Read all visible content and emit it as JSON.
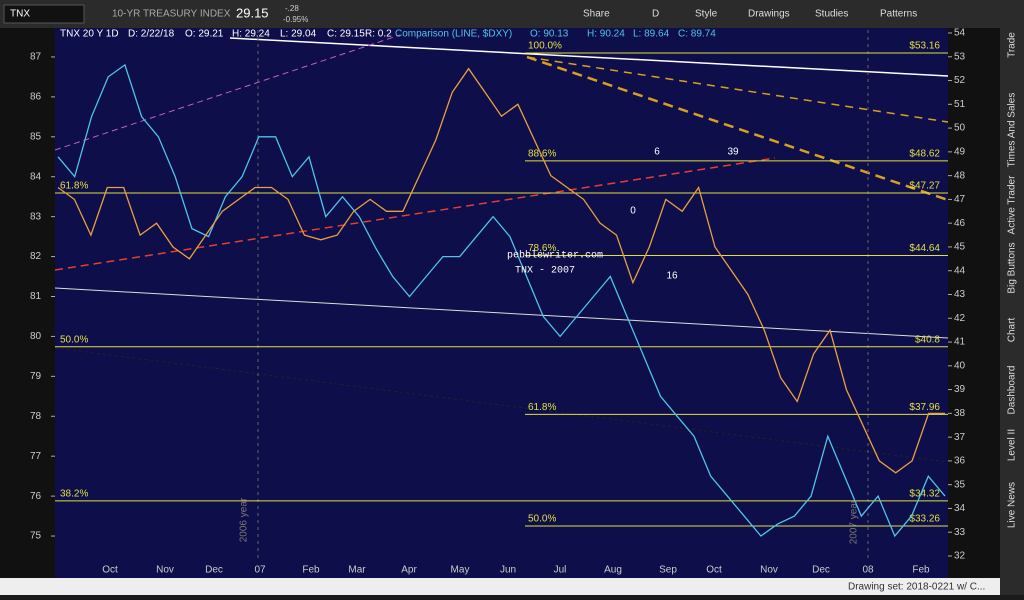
{
  "toolbar": {
    "symbol": "TNX",
    "description": "10-YR TREASURY INDEX",
    "last": "29.15",
    "change": "-.28",
    "change_pct": "-0.95%",
    "buttons": [
      "Share",
      "D",
      "Style",
      "Drawings",
      "Studies",
      "Patterns"
    ]
  },
  "header": {
    "study": "TNX 20 Y 1D",
    "date": "D: 2/22/18",
    "open": "O: 29.21",
    "high": "H: 29.24",
    "low": "L: 29.04",
    "close": "C: 29.15",
    "range": "R: 0.2",
    "comparison": "Comparison (LINE, $DXY)",
    "c_open": "O: 90.13",
    "c_high": "H: 90.24",
    "c_low": "L: 89.64",
    "c_close": "C: 89.74"
  },
  "chart": {
    "type": "line",
    "x_labels": [
      "Oct",
      "Nov",
      "Dec",
      "07",
      "Feb",
      "Mar",
      "Apr",
      "May",
      "Jun",
      "Jul",
      "Aug",
      "Sep",
      "Oct",
      "Nov",
      "Dec",
      "08",
      "Feb"
    ],
    "ylim": [
      32,
      54
    ],
    "yticks": [
      32,
      33,
      34,
      35,
      36,
      37,
      38,
      39,
      40,
      41,
      42,
      43,
      44,
      45,
      46,
      47,
      48,
      49,
      50,
      51,
      52,
      53,
      54
    ],
    "y2lim": [
      74.5,
      87.6
    ],
    "y2ticks": [
      75,
      76,
      77,
      78,
      79,
      80,
      81,
      82,
      83,
      84,
      85,
      86,
      87
    ],
    "price": {
      "name": "TNX",
      "color": "#e8a040",
      "values": [
        47.5,
        47,
        45.5,
        47.5,
        47.5,
        45.5,
        46,
        45,
        44.5,
        45.5,
        46.5,
        47,
        47.5,
        47.5,
        47,
        45.5,
        45.3,
        45.5,
        46.5,
        47,
        46.5,
        46.5,
        48,
        49.5,
        51.5,
        52.5,
        51.5,
        50.5,
        51,
        49.5,
        48,
        47.5,
        47,
        46,
        45.5,
        43.5,
        45,
        47,
        46.5,
        47.5,
        45,
        44,
        43,
        41.5,
        39.5,
        38.5,
        40.5,
        41.5,
        39,
        37.5,
        36,
        35.5,
        36,
        38,
        38
      ]
    },
    "comparison": {
      "name": "$DXY",
      "color": "#4fc3e8",
      "axis": "y2",
      "values": [
        84.5,
        84,
        85.5,
        86.5,
        86.8,
        85.5,
        85,
        84,
        82.7,
        82.5,
        83.5,
        84,
        85,
        85,
        84,
        84.5,
        83,
        83.5,
        83,
        82.2,
        81.5,
        81,
        81.5,
        82,
        82,
        82.5,
        83,
        82.5,
        81.5,
        80.5,
        80,
        80.5,
        81,
        81.5,
        80.5,
        79.5,
        78.5,
        78,
        77.5,
        76.5,
        76,
        75.5,
        75,
        75.3,
        75.5,
        76,
        77.5,
        76.5,
        75.5,
        76,
        75,
        75.5,
        76.5,
        76
      ]
    },
    "fib_full": [
      {
        "label": "61.8%",
        "price": {
          "value": 47.27,
          "label": "$47.27"
        }
      },
      {
        "label": "50.0%",
        "price": {
          "value": 40.8,
          "label": "$40.8"
        }
      },
      {
        "label": "38.2%",
        "price": {
          "value": 34.32,
          "label": "$34.32"
        }
      }
    ],
    "fib_mid": [
      {
        "label": "100.0%",
        "price": {
          "value": 53.16,
          "label": "$53.16"
        }
      },
      {
        "label": "88.6%",
        "price": {
          "value": 48.62,
          "label": "$48.62"
        }
      },
      {
        "label": "78.6%",
        "price": {
          "value": 44.64,
          "label": "$44.64"
        }
      },
      {
        "label": "61.8%",
        "price": {
          "value": 37.96,
          "label": "$37.96"
        }
      },
      {
        "label": "50.0%",
        "price": {
          "value": 33.26,
          "label": "$33.26"
        }
      }
    ],
    "annotations": [
      "pebblewriter.com",
      "TNX - 2007",
      "6",
      "39",
      "0",
      "16",
      "2006 year",
      "2007 year"
    ]
  },
  "sidebar": [
    "Trade",
    "Times And Sales",
    "Active Trader",
    "Big Buttons",
    "Chart",
    "Dashboard",
    "Level II",
    "Live News"
  ],
  "status": "Drawing set: 2018-0221 w/ C..."
}
